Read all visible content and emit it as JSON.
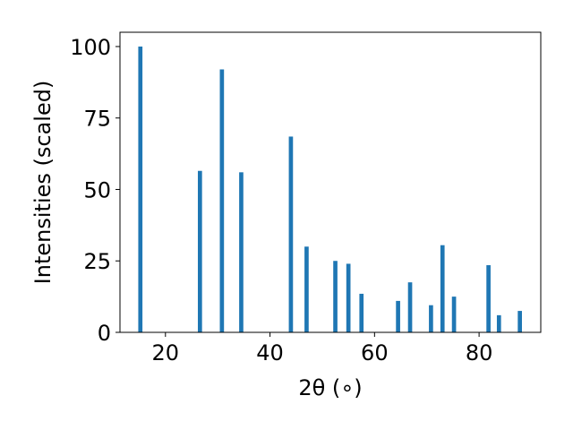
{
  "chart_data": {
    "type": "bar",
    "title": "",
    "xlabel": "2θ (∘)",
    "ylabel": "Intensities (scaled)",
    "xlim": [
      11.3,
      91.8
    ],
    "ylim": [
      0,
      105
    ],
    "xticks": [
      20,
      40,
      60,
      80
    ],
    "yticks": [
      0,
      25,
      50,
      75,
      100
    ],
    "grid": false,
    "bar_color": "#1f77b4",
    "bar_width": 0.8,
    "x": [
      15.2,
      26.6,
      30.8,
      34.5,
      44.0,
      47.0,
      52.5,
      55.0,
      57.5,
      64.5,
      66.8,
      70.8,
      73.0,
      75.2,
      81.8,
      83.8,
      87.8
    ],
    "values": [
      100,
      56.5,
      92,
      56,
      68.5,
      30,
      25,
      24,
      13.5,
      11,
      17.5,
      9.5,
      30.5,
      12.5,
      23.5,
      6,
      7.5
    ]
  }
}
